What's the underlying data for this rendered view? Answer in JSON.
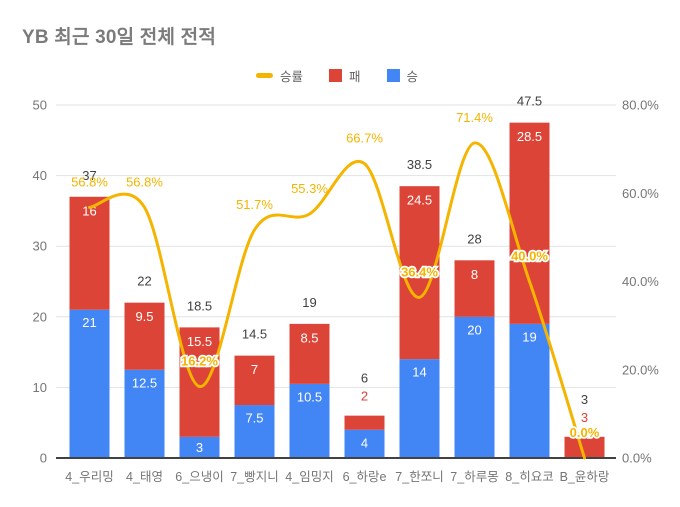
{
  "legend": {
    "items": [
      {
        "label": "승률",
        "color": "#F4B400",
        "marker": "line"
      },
      {
        "label": "패",
        "color": "#DB4437",
        "marker": "square"
      },
      {
        "label": "승",
        "color": "#4285F4",
        "marker": "square"
      }
    ]
  },
  "chart_data": {
    "type": "bar",
    "subtype": "stacked-bars-with-smooth-line",
    "title": "YB 최근 30일 전체 전적",
    "categories": [
      "4_우리밍",
      "4_태영",
      "6_으냉이",
      "7_빵지니",
      "4_임밍지",
      "6_하랑e",
      "7_한쪼니",
      "7_하루몽",
      "8_히요코",
      "B_윤하랑"
    ],
    "series": [
      {
        "name": "승",
        "type": "bar",
        "axis": "left",
        "color": "#4285F4",
        "values": [
          21,
          12.5,
          3,
          7.5,
          10.5,
          4,
          14,
          20,
          19,
          0
        ],
        "labels": [
          "21",
          "12.5",
          "3",
          "7.5",
          "10.5",
          "4",
          "14",
          "20",
          "19",
          ""
        ]
      },
      {
        "name": "패",
        "type": "bar",
        "axis": "left",
        "color": "#DB4437",
        "values": [
          16,
          9.5,
          15.5,
          7,
          8.5,
          2,
          24.5,
          8,
          28.5,
          3
        ],
        "labels": [
          "16",
          "9.5",
          "15.5",
          "7",
          "8.5",
          "2",
          "24.5",
          "8",
          "28.5",
          "3"
        ]
      },
      {
        "name": "승률",
        "type": "line",
        "axis": "right",
        "color": "#F4B400",
        "values": [
          56.8,
          56.8,
          16.2,
          51.7,
          55.3,
          66.7,
          36.4,
          71.4,
          40.0,
          0.0
        ],
        "labels": [
          "56.8%",
          "56.8%",
          "16.2%",
          "51.7%",
          "55.3%",
          "66.7%",
          "36.4%",
          "71.4%",
          "40.0%",
          "0.0%"
        ]
      }
    ],
    "totals": {
      "values": [
        37,
        22,
        18.5,
        14.5,
        19,
        6,
        38.5,
        28,
        47.5,
        3
      ],
      "labels": [
        "37",
        "22",
        "18.5",
        "14.5",
        "19",
        "6",
        "38.5",
        "28",
        "47.5",
        "3"
      ]
    },
    "left_axis": {
      "min": 0,
      "max": 50,
      "ticks": [
        0,
        10,
        20,
        30,
        40,
        50
      ],
      "tick_labels": [
        "0",
        "10",
        "20",
        "30",
        "40",
        "50"
      ]
    },
    "right_axis": {
      "min": 0,
      "max": 80,
      "ticks": [
        0,
        20,
        40,
        60,
        80
      ],
      "tick_labels": [
        "0.0%",
        "20.0%",
        "40.0%",
        "60.0%",
        "80.0%"
      ]
    },
    "grid": true,
    "legend_position": "top",
    "loss_label_outside_indices": [
      5,
      9
    ],
    "colors": {
      "background": "#ffffff",
      "title_text": "#7b7b7b",
      "axis_text": "#757575",
      "total_label_text": "#404040",
      "segment_label_text": "#ffffff",
      "gridline": "#e2e2e2",
      "axis_line": "#424242"
    }
  }
}
